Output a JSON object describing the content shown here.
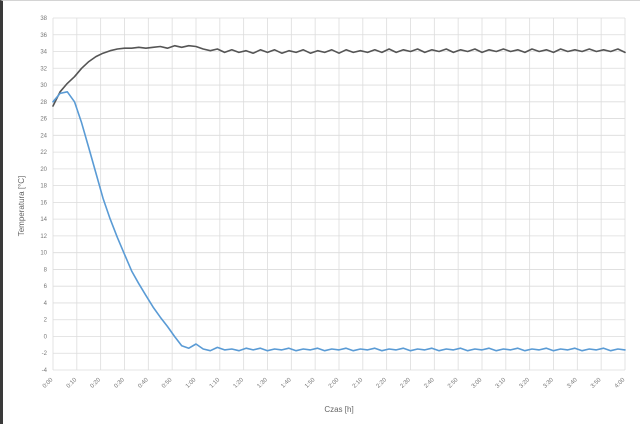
{
  "chart_data": {
    "type": "line",
    "title": "",
    "xlabel": "Czas [h]",
    "ylabel": "Temperatura [°C]",
    "xlim": [
      0,
      4
    ],
    "ylim": [
      -4,
      38
    ],
    "grid": true,
    "legend": "none",
    "x_tick_labels": [
      "0:00",
      "0:10",
      "0:20",
      "0:30",
      "0:40",
      "0:50",
      "1:00",
      "1:10",
      "1:20",
      "1:30",
      "1:40",
      "1:50",
      "2:00",
      "2:10",
      "2:20",
      "2:30",
      "2:40",
      "2:50",
      "3:00",
      "3:10",
      "3:20",
      "3:30",
      "3:40",
      "3:50",
      "4:00"
    ],
    "y_ticks": [
      -4,
      -2,
      0,
      2,
      4,
      6,
      8,
      10,
      12,
      14,
      16,
      18,
      20,
      22,
      24,
      26,
      28,
      30,
      32,
      34,
      36,
      38
    ],
    "series": [
      {
        "color": "#555555",
        "x": [
          0,
          0.05,
          0.1,
          0.15,
          0.2,
          0.25,
          0.3,
          0.35,
          0.4,
          0.45,
          0.5,
          0.55,
          0.6,
          0.65,
          0.7,
          0.75,
          0.8,
          0.85,
          0.9,
          0.95,
          1.0,
          1.05,
          1.1,
          1.15,
          1.2,
          1.25,
          1.3,
          1.35,
          1.4,
          1.45,
          1.5,
          1.55,
          1.6,
          1.65,
          1.7,
          1.75,
          1.8,
          1.85,
          1.9,
          1.95,
          2.0,
          2.05,
          2.1,
          2.15,
          2.2,
          2.25,
          2.3,
          2.35,
          2.4,
          2.45,
          2.5,
          2.55,
          2.6,
          2.65,
          2.7,
          2.75,
          2.8,
          2.85,
          2.9,
          2.95,
          3.0,
          3.05,
          3.1,
          3.15,
          3.2,
          3.25,
          3.3,
          3.35,
          3.4,
          3.45,
          3.5,
          3.55,
          3.6,
          3.65,
          3.7,
          3.75,
          3.8,
          3.85,
          3.9,
          3.95,
          4.0
        ],
        "values": [
          27.5,
          29.2,
          30.2,
          31.0,
          32.0,
          32.8,
          33.4,
          33.8,
          34.1,
          34.3,
          34.4,
          34.4,
          34.5,
          34.4,
          34.5,
          34.6,
          34.4,
          34.7,
          34.5,
          34.7,
          34.6,
          34.3,
          34.1,
          34.3,
          33.9,
          34.2,
          33.9,
          34.1,
          33.8,
          34.2,
          33.9,
          34.2,
          33.8,
          34.1,
          33.9,
          34.2,
          33.8,
          34.1,
          33.9,
          34.2,
          33.8,
          34.2,
          33.9,
          34.1,
          33.9,
          34.2,
          33.9,
          34.3,
          33.9,
          34.2,
          34.0,
          34.3,
          33.9,
          34.2,
          34.0,
          34.3,
          33.9,
          34.2,
          34.0,
          34.3,
          33.9,
          34.2,
          34.0,
          34.3,
          34.0,
          34.2,
          33.9,
          34.3,
          34.0,
          34.2,
          33.9,
          34.3,
          34.0,
          34.2,
          34.0,
          34.3,
          34.0,
          34.2,
          34.0,
          34.3,
          33.9
        ]
      },
      {
        "color": "#5a9bd5",
        "x": [
          0,
          0.05,
          0.1,
          0.15,
          0.2,
          0.25,
          0.3,
          0.35,
          0.4,
          0.45,
          0.5,
          0.55,
          0.6,
          0.65,
          0.7,
          0.75,
          0.8,
          0.85,
          0.9,
          0.95,
          1.0,
          1.05,
          1.1,
          1.15,
          1.2,
          1.25,
          1.3,
          1.35,
          1.4,
          1.45,
          1.5,
          1.55,
          1.6,
          1.65,
          1.7,
          1.75,
          1.8,
          1.85,
          1.9,
          1.95,
          2.0,
          2.05,
          2.1,
          2.15,
          2.2,
          2.25,
          2.3,
          2.35,
          2.4,
          2.45,
          2.5,
          2.55,
          2.6,
          2.65,
          2.7,
          2.75,
          2.8,
          2.85,
          2.9,
          2.95,
          3.0,
          3.05,
          3.1,
          3.15,
          3.2,
          3.25,
          3.3,
          3.35,
          3.4,
          3.45,
          3.5,
          3.55,
          3.6,
          3.65,
          3.7,
          3.75,
          3.8,
          3.85,
          3.9,
          3.95,
          4.0
        ],
        "values": [
          28.0,
          29.0,
          29.2,
          28.0,
          25.5,
          22.5,
          19.5,
          16.5,
          14.0,
          11.8,
          9.8,
          7.8,
          6.3,
          4.9,
          3.5,
          2.3,
          1.2,
          0.0,
          -1.1,
          -1.4,
          -0.9,
          -1.5,
          -1.7,
          -1.3,
          -1.6,
          -1.5,
          -1.7,
          -1.4,
          -1.6,
          -1.4,
          -1.7,
          -1.5,
          -1.6,
          -1.4,
          -1.7,
          -1.5,
          -1.6,
          -1.4,
          -1.7,
          -1.5,
          -1.6,
          -1.4,
          -1.7,
          -1.5,
          -1.6,
          -1.4,
          -1.7,
          -1.5,
          -1.6,
          -1.4,
          -1.7,
          -1.5,
          -1.6,
          -1.4,
          -1.7,
          -1.5,
          -1.6,
          -1.4,
          -1.7,
          -1.5,
          -1.6,
          -1.4,
          -1.7,
          -1.5,
          -1.6,
          -1.4,
          -1.7,
          -1.5,
          -1.6,
          -1.4,
          -1.7,
          -1.5,
          -1.6,
          -1.4,
          -1.7,
          -1.5,
          -1.6,
          -1.4,
          -1.7,
          -1.5,
          -1.6
        ]
      }
    ]
  }
}
